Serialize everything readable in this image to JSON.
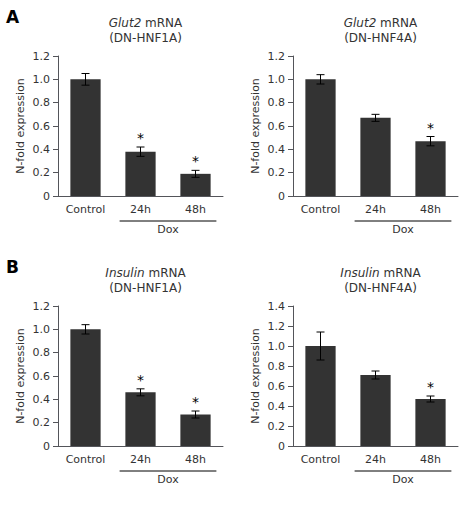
{
  "chart_data": [
    {
      "type": "bar",
      "title": "Glut2 mRNA",
      "subtitle": "(DN-HNF1A)",
      "panel_label": "A",
      "ylabel": "N-fold expression",
      "categories": [
        "Control",
        "24h",
        "48h"
      ],
      "values": [
        1.0,
        0.38,
        0.19
      ],
      "errors": [
        0.05,
        0.04,
        0.03
      ],
      "color": "#333333",
      "ylim": [
        0,
        1.2
      ],
      "yticks": [
        0,
        0.2,
        0.4,
        0.6,
        0.8,
        {
          "value": 1.0,
          "label": "1.0"
        },
        1.2
      ],
      "grid": false,
      "annotations": [
        {
          "text": "*",
          "x": "24h"
        },
        {
          "text": "*",
          "x": "48h"
        },
        {
          "text": "Dox",
          "x": [
            "24h",
            "48h"
          ]
        }
      ]
    },
    {
      "type": "bar",
      "title": "Glut2 mRNA",
      "subtitle": "(DN-HNF4A)",
      "ylabel": "N-fold expression",
      "categories": [
        "Control",
        "24h",
        "48h"
      ],
      "values": [
        1.0,
        0.67,
        0.47
      ],
      "errors": [
        0.04,
        0.03,
        0.04
      ],
      "color": "#333333",
      "ylim": [
        0,
        1.2
      ],
      "yticks": [
        0,
        0.2,
        0.4,
        0.6,
        0.8,
        {
          "value": 1.0,
          "label": "1.0"
        },
        1.2
      ],
      "grid": false,
      "annotations": [
        {
          "text": "*",
          "x": "48h"
        },
        {
          "text": "Dox",
          "x": [
            "24h",
            "48h"
          ]
        }
      ]
    },
    {
      "type": "bar",
      "title": "Insulin mRNA",
      "subtitle": "(DN-HNF1A)",
      "panel_label": "B",
      "ylabel": "N-fold expression",
      "categories": [
        "Control",
        "24h",
        "48h"
      ],
      "values": [
        1.0,
        0.46,
        0.27
      ],
      "errors": [
        0.04,
        0.03,
        0.03
      ],
      "color": "#333333",
      "ylim": [
        0,
        1.2
      ],
      "yticks": [
        0,
        0.2,
        0.4,
        0.6,
        0.8,
        {
          "value": 1.0,
          "label": "1.0"
        },
        1.2
      ],
      "grid": false,
      "annotations": [
        {
          "text": "*",
          "x": "24h"
        },
        {
          "text": "*",
          "x": "48h"
        },
        {
          "text": "Dox",
          "x": [
            "24h",
            "48h"
          ]
        }
      ]
    },
    {
      "type": "bar",
      "title": "Insulin mRNA",
      "subtitle": "(DN-HNF4A)",
      "ylabel": "N-fold expression",
      "categories": [
        "Control",
        "24h",
        "48h"
      ],
      "values": [
        1.0,
        0.71,
        0.47
      ],
      "errors": [
        0.14,
        0.04,
        0.03
      ],
      "color": "#333333",
      "ylim": [
        0,
        1.4
      ],
      "yticks": [
        0,
        0.2,
        0.4,
        0.6,
        0.8,
        {
          "value": 1.0,
          "label": "1.0"
        },
        1.2,
        1.4
      ],
      "grid": false,
      "annotations": [
        {
          "text": "*",
          "x": "48h"
        },
        {
          "text": "Dox",
          "x": [
            "24h",
            "48h"
          ]
        }
      ]
    }
  ]
}
